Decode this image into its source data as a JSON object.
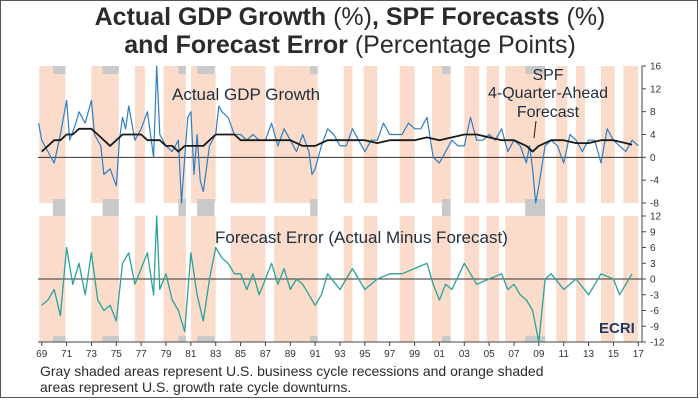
{
  "title": {
    "line1_bold_a": "Actual GDP Growth",
    "line1_unit_a": "(%)",
    "line1_bold_b": ", SPF Forecasts",
    "line1_unit_b": "(%)",
    "line2_bold": "and Forecast Error",
    "line2_unit": "(Percentage Points)"
  },
  "caption": {
    "line1": "Gray shaded areas represent U.S. business cycle recessions and orange shaded",
    "line2": "areas represent U.S. growth rate cycle downturns."
  },
  "logo": "ECRI",
  "colors": {
    "actual": "#2e7fc4",
    "forecast": "#1a1a1a",
    "error": "#2aa39a",
    "recession": "#c9c9c9",
    "downturn": "#fbdccb"
  },
  "chart_data": [
    {
      "type": "line",
      "panel": "top",
      "x_unit": "year",
      "x_ticks": [
        "69",
        "71",
        "73",
        "75",
        "77",
        "79",
        "81",
        "83",
        "85",
        "87",
        "89",
        "91",
        "93",
        "95",
        "97",
        "99",
        "01",
        "03",
        "05",
        "07",
        "09",
        "11",
        "13",
        "15",
        "17"
      ],
      "ylim": [
        -8,
        16
      ],
      "y_ticks": [
        -8,
        -4,
        0,
        4,
        8,
        12,
        16
      ],
      "y_tick_labels": [
        "-8",
        "-4",
        "0",
        "4",
        "8",
        "12",
        "16"
      ],
      "series": [
        {
          "name": "Actual GDP Growth",
          "x": [
            1968.75,
            1969,
            1969.5,
            1970,
            1970.5,
            1971,
            1971.25,
            1971.75,
            1972,
            1972.5,
            1973,
            1973.25,
            1973.75,
            1974,
            1974.5,
            1975,
            1975.25,
            1975.5,
            1975.75,
            1976,
            1976.5,
            1977,
            1977.5,
            1978,
            1978.25,
            1978.5,
            1979,
            1979.5,
            1980,
            1980.25,
            1980.5,
            1980.75,
            1981,
            1981.25,
            1981.5,
            1981.75,
            1982,
            1982.5,
            1983,
            1983.25,
            1983.5,
            1984,
            1984.5,
            1985,
            1985.5,
            1986,
            1986.5,
            1987,
            1987.5,
            1988,
            1988.5,
            1989,
            1989.5,
            1990,
            1990.5,
            1990.75,
            1991,
            1991.5,
            1992,
            1992.5,
            1993,
            1993.5,
            1994,
            1994.5,
            1995,
            1995.5,
            1996,
            1996.5,
            1997,
            1997.5,
            1998,
            1998.5,
            1999,
            1999.5,
            2000,
            2000.5,
            2001,
            2001.5,
            2002,
            2002.5,
            2003,
            2003.5,
            2004,
            2004.5,
            2005,
            2005.5,
            2006,
            2006.5,
            2007,
            2007.5,
            2008,
            2008.25,
            2008.5,
            2008.75,
            2009,
            2009.5,
            2010,
            2010.5,
            2011,
            2011.5,
            2012,
            2012.5,
            2013,
            2013.5,
            2014,
            2014.5,
            2015,
            2015.5,
            2016,
            2016.5,
            2017
          ],
          "y": [
            6,
            3,
            1,
            -1,
            4,
            10,
            3,
            6,
            8,
            6,
            10,
            4,
            2,
            -3,
            -2,
            -5,
            3,
            7,
            5,
            9,
            3,
            5,
            8,
            0,
            16,
            4,
            2,
            1,
            3,
            -8,
            0,
            7,
            8,
            -3,
            4,
            -4,
            -6,
            2,
            4,
            9,
            8,
            7,
            4,
            4,
            3,
            4,
            3,
            3,
            6,
            2,
            5,
            3,
            1,
            4,
            1,
            -3,
            -2,
            2,
            5,
            4,
            2,
            2,
            5,
            3,
            1,
            3,
            3,
            6,
            4,
            4,
            4,
            6,
            5,
            5,
            7,
            0,
            -1,
            1,
            3,
            2,
            2,
            7,
            3,
            3,
            4,
            3,
            5,
            1,
            3,
            2,
            -1,
            2,
            -2,
            -8,
            -5,
            2,
            3,
            2,
            -1,
            4,
            3,
            1,
            3,
            3,
            -1,
            5,
            3,
            2,
            1,
            3,
            2
          ]
        },
        {
          "name": "SPF 4-Quarter-Ahead Forecast",
          "x": [
            1969,
            1969.5,
            1970,
            1970.5,
            1971,
            1971.5,
            1972,
            1972.5,
            1973,
            1973.5,
            1974,
            1974.5,
            1975,
            1975.5,
            1976,
            1976.5,
            1977,
            1977.5,
            1978,
            1978.5,
            1979,
            1979.5,
            1980,
            1980.5,
            1981,
            1981.5,
            1982,
            1982.5,
            1983,
            1983.5,
            1984,
            1984.5,
            1985,
            1986,
            1987,
            1988,
            1989,
            1990,
            1991,
            1992,
            1993,
            1994,
            1995,
            1996,
            1997,
            1998,
            1999,
            2000,
            2001,
            2002,
            2003,
            2004,
            2005,
            2006,
            2007,
            2008,
            2008.5,
            2009,
            2010,
            2011,
            2012,
            2013,
            2014,
            2015,
            2016,
            2016.5
          ],
          "y": [
            1,
            2,
            3,
            3,
            4,
            4,
            5,
            5,
            5,
            4,
            3,
            2,
            3,
            4,
            4,
            4,
            4,
            3,
            3,
            3,
            2,
            2,
            1,
            2,
            2,
            2,
            2,
            3,
            4,
            4,
            4,
            4,
            3,
            3,
            3,
            3,
            3,
            2,
            2,
            3,
            3,
            3,
            3,
            2.5,
            3,
            3,
            3,
            3.5,
            3,
            3.5,
            4,
            4,
            3.5,
            3,
            3,
            2,
            1,
            2,
            3,
            3,
            2.5,
            2.5,
            3,
            3,
            2.5,
            2.2
          ]
        }
      ]
    },
    {
      "type": "line",
      "panel": "bottom",
      "x_unit": "year",
      "ylim": [
        -12,
        12
      ],
      "y_ticks": [
        -12,
        -9,
        -6,
        -3,
        0,
        3,
        6,
        9,
        12
      ],
      "y_tick_labels": [
        "-12",
        "-9",
        "-6",
        "-3",
        "0",
        "3",
        "6",
        "9",
        "12"
      ],
      "series": [
        {
          "name": "Forecast Error (Actual Minus Forecast)",
          "x": [
            1969,
            1969.5,
            1970,
            1970.5,
            1971,
            1971.5,
            1972,
            1972.5,
            1973,
            1973.5,
            1974,
            1974.5,
            1975,
            1975.5,
            1976,
            1976.5,
            1977,
            1977.5,
            1978,
            1978.25,
            1978.5,
            1979,
            1979.5,
            1980,
            1980.5,
            1981,
            1981.5,
            1982,
            1982.5,
            1983,
            1983.5,
            1984,
            1984.5,
            1985,
            1985.5,
            1986,
            1986.5,
            1987,
            1987.5,
            1988,
            1988.5,
            1989,
            1989.5,
            1990,
            1990.5,
            1991,
            1991.5,
            1992,
            1993,
            1994,
            1995,
            1996,
            1997,
            1998,
            1999,
            2000,
            2000.5,
            2001,
            2001.5,
            2002,
            2003,
            2004,
            2005,
            2006,
            2006.5,
            2007,
            2007.5,
            2008,
            2008.5,
            2009,
            2009.5,
            2010,
            2011,
            2012,
            2013,
            2014,
            2015,
            2015.5,
            2016,
            2016.5
          ],
          "y": [
            -5,
            -4,
            -2,
            -7,
            6,
            -1,
            3,
            -3,
            5,
            -4,
            -6,
            -5,
            -8,
            3,
            5,
            -1,
            2,
            5,
            -3,
            12,
            -2,
            1,
            -4,
            -6,
            -10,
            5,
            -3,
            -8,
            0,
            6,
            4,
            3,
            1,
            1,
            -2,
            1,
            -3,
            0,
            3,
            -1,
            2,
            -2,
            0,
            -1,
            -3,
            -5,
            -3,
            1,
            -2,
            2,
            -2,
            0,
            1,
            1,
            2,
            3,
            -1,
            -4,
            -1,
            -2,
            3,
            -1,
            0,
            1,
            -2,
            -1,
            -3,
            -4,
            -6,
            -12,
            0,
            1,
            -2,
            0,
            -3,
            1,
            0,
            -3,
            -1,
            1
          ]
        }
      ]
    }
  ],
  "annotations": {
    "top_series_label": "Actual GDP Growth",
    "spf_label_line1": "SPF",
    "spf_label_line2": "4-Quarter-Ahead",
    "spf_label_line3": "Forecast",
    "bottom_series_label": "Forecast Error (Actual Minus Forecast)"
  },
  "recessions": [
    [
      1969.9,
      1970.9
    ],
    [
      1973.9,
      1975.2
    ],
    [
      1980.0,
      1980.6
    ],
    [
      1981.5,
      1982.9
    ],
    [
      1990.6,
      1991.2
    ],
    [
      2001.2,
      2001.9
    ],
    [
      2007.9,
      2009.5
    ]
  ],
  "downturns": [
    [
      1968.8,
      1970.9
    ],
    [
      1973.0,
      1975.2
    ],
    [
      1976.5,
      1977.3
    ],
    [
      1978.8,
      1980.6
    ],
    [
      1981.0,
      1983.0
    ],
    [
      1984.2,
      1987.0
    ],
    [
      1987.7,
      1991.2
    ],
    [
      1993.3,
      1994.0
    ],
    [
      1994.9,
      1996.0
    ],
    [
      1997.8,
      1999.0
    ],
    [
      2000.4,
      2001.9
    ],
    [
      2003.0,
      2004.2
    ],
    [
      2004.8,
      2005.8
    ],
    [
      2006.3,
      2009.5
    ],
    [
      2010.4,
      2011.3
    ],
    [
      2012.0,
      2012.7
    ],
    [
      2014.0,
      2015.1
    ],
    [
      2015.8,
      2017.0
    ]
  ]
}
